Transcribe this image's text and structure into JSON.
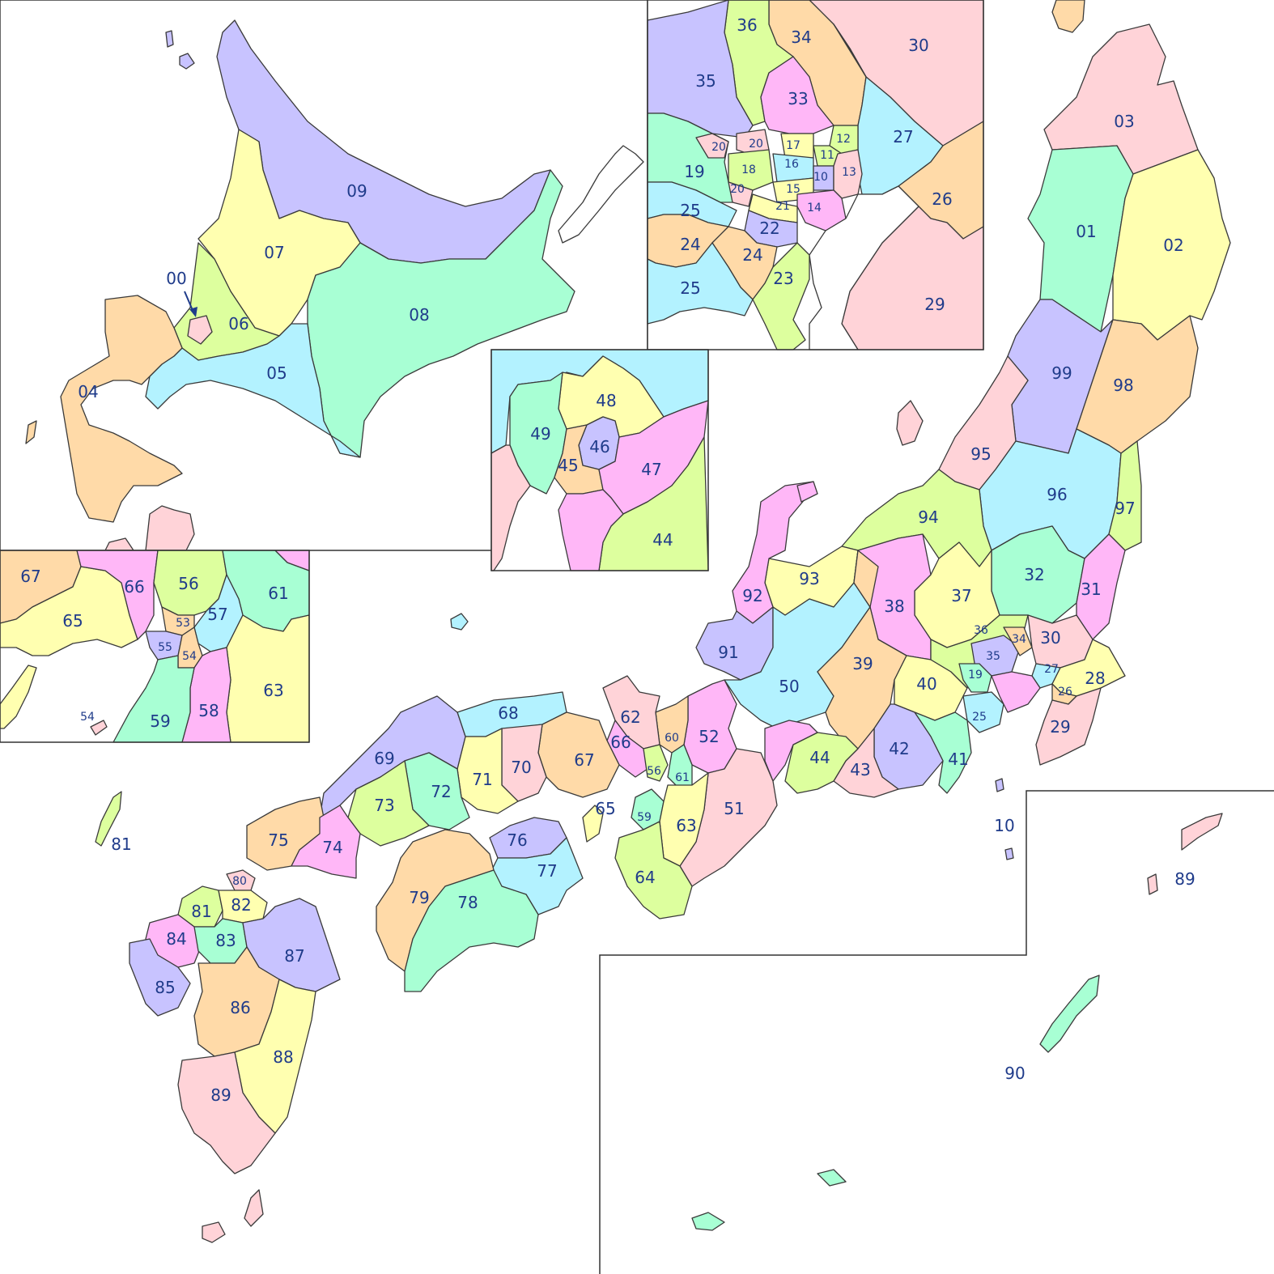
{
  "colors": {
    "pink": "#ffd3d8",
    "yellow": "#ffffb0",
    "lavender": "#c8c3ff",
    "mint": "#a8ffd4",
    "peach": "#ffdaa8",
    "lime": "#ddff9e",
    "cyan": "#b3f2ff",
    "magenta": "#ffb7f7",
    "label": "#1f3b8a",
    "border": "#3a3a3a"
  },
  "map_labels": {
    "hokkaido_inset": [
      "00",
      "09",
      "07",
      "06",
      "08",
      "05",
      "04"
    ],
    "kanto_inset": [
      "36",
      "34",
      "30",
      "35",
      "33",
      "27",
      "20",
      "20",
      "17",
      "12",
      "19",
      "18",
      "16",
      "11",
      "10",
      "13",
      "26",
      "20",
      "15",
      "25",
      "21",
      "14",
      "22",
      "24",
      "24",
      "25",
      "23",
      "29"
    ],
    "nagoya_inset": [
      "48",
      "49",
      "46",
      "45",
      "47",
      "44"
    ],
    "osaka_inset": [
      "67",
      "66",
      "56",
      "61",
      "65",
      "53",
      "57",
      "55",
      "54",
      "63",
      "54",
      "59",
      "58"
    ],
    "main": [
      "03",
      "01",
      "02",
      "99",
      "98",
      "95",
      "96",
      "97",
      "94",
      "32",
      "31",
      "93",
      "37",
      "38",
      "92",
      "36",
      "34",
      "30",
      "91",
      "35",
      "39",
      "27",
      "50",
      "40",
      "19",
      "28",
      "26",
      "62",
      "68",
      "29",
      "60",
      "52",
      "66",
      "25",
      "69",
      "67",
      "70",
      "71",
      "44",
      "42",
      "41",
      "56",
      "61",
      "43",
      "72",
      "73",
      "65",
      "51",
      "10",
      "59",
      "63",
      "75",
      "74",
      "76",
      "80",
      "77",
      "64",
      "89",
      "81",
      "79",
      "82",
      "78",
      "84",
      "83",
      "87",
      "85",
      "86",
      "88",
      "89",
      "90"
    ]
  }
}
